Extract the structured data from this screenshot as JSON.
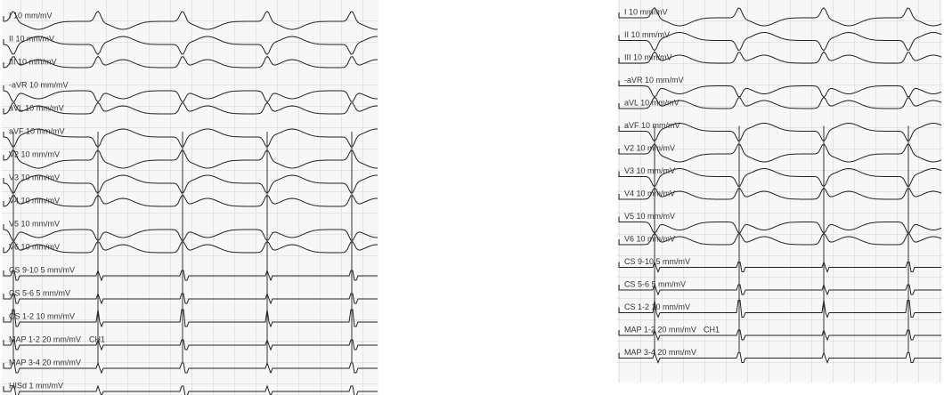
{
  "panels": [
    {
      "leads": [
        {
          "label": "I 10 mm/mV"
        },
        {
          "label": "II 10 mm/mV"
        },
        {
          "label": "III 10 mm/mV"
        },
        {
          "label": "-aVR 10 mm/mV"
        },
        {
          "label": "aVL 10 mm/mV"
        },
        {
          "label": "aVF 10 mm/mV"
        },
        {
          "label": "V2 10 mm/mV"
        },
        {
          "label": "V3 10 mm/mV"
        },
        {
          "label": "V4 10 mm/mV"
        },
        {
          "label": "V5 10 mm/mV"
        },
        {
          "label": "V6 10 mm/mV"
        },
        {
          "label": "CS 9-10 5 mm/mV"
        },
        {
          "label": "CS 5-6 5 mm/mV"
        },
        {
          "label": "CS 1-2 10 mm/mV"
        },
        {
          "label": "MAP 1-2 20 mm/mV"
        },
        {
          "label": "MAP 3-4 20 mm/mV"
        },
        {
          "label": "HISd 1 mm/mV"
        }
      ],
      "marker": "CH1"
    },
    {
      "leads": [
        {
          "label": "I 10 mm/mV"
        },
        {
          "label": "II 10 mm/mV"
        },
        {
          "label": "III 10 mm/mV"
        },
        {
          "label": "-aVR 10 mm/mV"
        },
        {
          "label": "aVL 10 mm/mV"
        },
        {
          "label": "aVF 10 mm/mV"
        },
        {
          "label": "V2 10 mm/mV"
        },
        {
          "label": "V3 10 mm/mV"
        },
        {
          "label": "V4 10 mm/mV"
        },
        {
          "label": "V5 10 mm/mV"
        },
        {
          "label": "V6 10 mm/mV"
        },
        {
          "label": "CS 9-10 5 mm/mV"
        },
        {
          "label": "CS 5-6 5 mm/mV"
        },
        {
          "label": "CS 1-2 10 mm/mV"
        },
        {
          "label": "MAP 1-2 20 mm/mV"
        },
        {
          "label": "MAP 3-4 20 mm/mV"
        }
      ],
      "marker": "CH1"
    }
  ]
}
